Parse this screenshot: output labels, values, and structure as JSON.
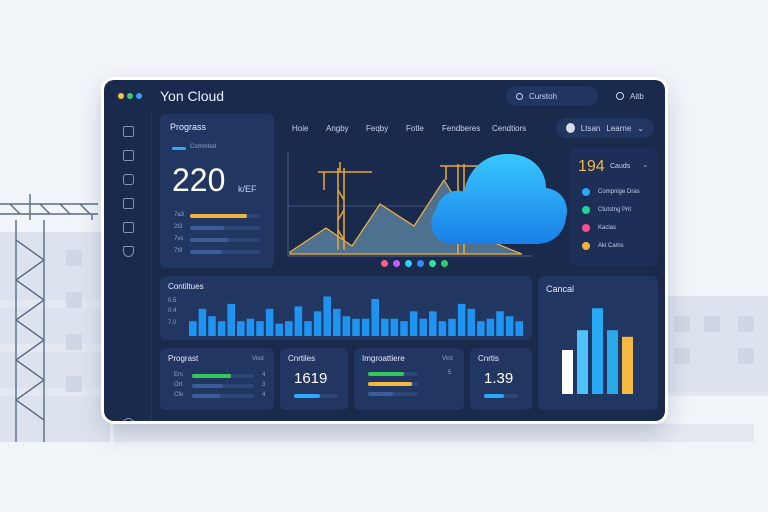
{
  "app": {
    "title": "Yon Cloud"
  },
  "search": {
    "label": "Curstoh",
    "icon": "search-icon"
  },
  "action": {
    "label": "Aitb"
  },
  "nav": {
    "items": [
      "Hoie",
      "Angby",
      "Feqby",
      "Fotle",
      "Fendberes",
      "Cendtiors"
    ]
  },
  "user": {
    "name": "Ltsan",
    "role": "Learne"
  },
  "progress_card": {
    "title": "Prograss",
    "legend": "Commted",
    "value": "220",
    "unit": "k/EF",
    "rows": [
      {
        "label": "7a3",
        "fraction": 0.82,
        "color": "#f2b33d"
      },
      {
        "label": "2t3",
        "fraction": 0.48,
        "color": "#3b5d9c"
      },
      {
        "label": "7vs",
        "fraction": 0.55,
        "color": "#3b5d9c"
      },
      {
        "label": "7t9",
        "fraction": 0.45,
        "color": "#3b5d9c"
      }
    ]
  },
  "hero": {
    "dots": [
      "#ff5b8a",
      "#c45bff",
      "#26d3ff",
      "#2f8cff",
      "#26e3a8",
      "#2ecc71"
    ]
  },
  "right_card": {
    "value": "194",
    "title": "Cauds",
    "legend": [
      {
        "label": "Compnige Dras",
        "color": "#2aa9ff"
      },
      {
        "label": "Ctutstng Prit",
        "color": "#23d3a0"
      },
      {
        "label": "Kacias",
        "color": "#ff4d8d"
      },
      {
        "label": "Aki Cams",
        "color": "#f2b33d"
      }
    ]
  },
  "bar_card": {
    "title": "Contiltues",
    "row_labels": [
      "0.5",
      "0.4",
      "7.0"
    ],
    "chart_data": {
      "type": "bar",
      "values": [
        12,
        22,
        16,
        12,
        26,
        12,
        14,
        12,
        22,
        10,
        12,
        24,
        12,
        20,
        32,
        22,
        16,
        14,
        14,
        30,
        14,
        14,
        12,
        20,
        14,
        20,
        12,
        14,
        26,
        22,
        12,
        14,
        20,
        16,
        12
      ],
      "ylim": [
        0,
        34
      ]
    }
  },
  "cancel_card": {
    "title": "Cancal",
    "chart_data": {
      "type": "bar",
      "values": [
        40,
        58,
        78,
        58,
        52
      ],
      "colors": [
        "#ffffff",
        "#4fc3f7",
        "#29a9f5",
        "#2aa9e8",
        "#f5b942"
      ],
      "ylim": [
        0,
        80
      ]
    }
  },
  "bottom_cards": [
    {
      "title": "Prograst",
      "tag": "Vivd",
      "rows": [
        {
          "label": "Ers",
          "value": "4",
          "fraction": 0.63,
          "color": "#34c759"
        },
        {
          "label": "Ort",
          "value": "3",
          "fraction": 0.5,
          "color": "#3b5d9c"
        },
        {
          "label": "Cfe",
          "value": "4",
          "fraction": 0.45,
          "color": "#3b5d9c"
        }
      ]
    },
    {
      "title": "Cnrtiles",
      "value": "1619",
      "fraction": 0.6,
      "color": "#2aa9ff"
    },
    {
      "title": "Imgroattiere",
      "tag": "Vird",
      "rows": [
        {
          "value": "5",
          "fraction": 0.72,
          "color": "#34c759"
        },
        {
          "value": "",
          "fraction": 0.88,
          "color": "#f5b942"
        },
        {
          "value": "",
          "fraction": 0.5,
          "color": "#3b5d9c"
        }
      ]
    },
    {
      "title": "Cnrtis",
      "value": "1.39",
      "fraction": 0.6,
      "color": "#2aa9ff"
    }
  ]
}
